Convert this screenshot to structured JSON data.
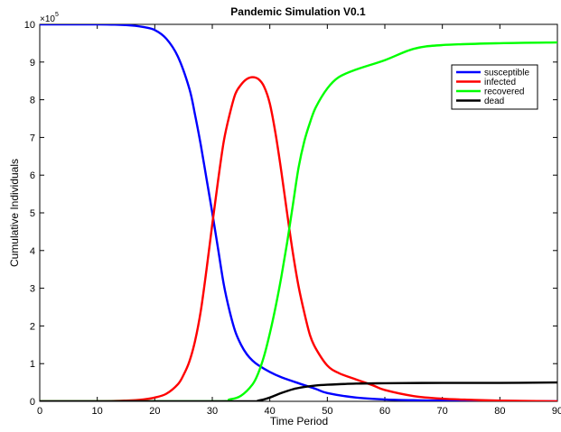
{
  "chart_data": {
    "type": "line",
    "title": "Pandemic Simulation V0.1",
    "xlabel": "Time Period",
    "ylabel": "Cumulative Individuals",
    "exponent_label": "×10",
    "exponent_power": "5",
    "xlim": [
      0,
      90
    ],
    "ylim": [
      0,
      10
    ],
    "xticks": [
      0,
      10,
      20,
      30,
      40,
      50,
      60,
      70,
      80,
      90
    ],
    "xtick_labels": [
      "0",
      "10",
      "20",
      "30",
      "40",
      "50",
      "60",
      "70",
      "80",
      "90"
    ],
    "yticks": [
      0,
      1,
      2,
      3,
      4,
      5,
      6,
      7,
      8,
      9,
      10
    ],
    "ytick_labels": [
      "0",
      "1",
      "2",
      "3",
      "4",
      "5",
      "6",
      "7",
      "8",
      "9",
      "10"
    ],
    "grid": false,
    "legend_position": "top-right",
    "series": [
      {
        "name": "susceptible",
        "color": "#0000ff",
        "x": [
          0,
          10,
          15,
          18,
          20,
          22,
          24,
          26,
          27,
          28,
          29,
          30,
          31,
          32,
          33,
          34,
          35,
          36,
          37,
          38,
          40,
          42,
          45,
          48,
          50,
          55,
          60,
          65,
          70,
          80,
          90
        ],
        "y": [
          10.0,
          10.0,
          9.98,
          9.93,
          9.85,
          9.62,
          9.15,
          8.3,
          7.6,
          6.8,
          5.9,
          5.0,
          4.05,
          3.1,
          2.4,
          1.85,
          1.5,
          1.25,
          1.08,
          0.96,
          0.78,
          0.64,
          0.48,
          0.33,
          0.22,
          0.1,
          0.05,
          0.03,
          0.02,
          0.01,
          0.0
        ]
      },
      {
        "name": "infected",
        "color": "#ff0000",
        "x": [
          0,
          10,
          15,
          18,
          20,
          22,
          24,
          25,
          26,
          27,
          28,
          29,
          30,
          31,
          32,
          33,
          34,
          35,
          36,
          37,
          38,
          39,
          40,
          41,
          42,
          43,
          44,
          45,
          46,
          47,
          48,
          50,
          52,
          55,
          58,
          60,
          65,
          70,
          75,
          80,
          90
        ],
        "y": [
          0.0,
          0.0,
          0.02,
          0.05,
          0.1,
          0.2,
          0.45,
          0.7,
          1.05,
          1.6,
          2.4,
          3.5,
          4.7,
          5.85,
          6.9,
          7.6,
          8.15,
          8.4,
          8.55,
          8.6,
          8.55,
          8.35,
          7.9,
          7.1,
          6.1,
          5.0,
          3.95,
          3.05,
          2.35,
          1.75,
          1.4,
          0.95,
          0.75,
          0.58,
          0.42,
          0.3,
          0.14,
          0.07,
          0.04,
          0.02,
          0.0
        ]
      },
      {
        "name": "recovered",
        "color": "#00ff00",
        "x": [
          0,
          30,
          33,
          35,
          37,
          38,
          39,
          40,
          41,
          42,
          43,
          44,
          45,
          46,
          47,
          48,
          50,
          52,
          55,
          60,
          65,
          70,
          80,
          90
        ],
        "y": [
          0.0,
          0.0,
          0.05,
          0.15,
          0.45,
          0.75,
          1.2,
          1.8,
          2.5,
          3.3,
          4.2,
          5.2,
          6.2,
          6.9,
          7.4,
          7.8,
          8.3,
          8.6,
          8.8,
          9.05,
          9.35,
          9.45,
          9.5,
          9.52
        ]
      },
      {
        "name": "dead",
        "color": "#000000",
        "x": [
          0,
          35,
          38,
          40,
          42,
          44,
          46,
          48,
          50,
          55,
          60,
          70,
          80,
          90
        ],
        "y": [
          0.0,
          0.0,
          0.02,
          0.1,
          0.22,
          0.32,
          0.38,
          0.42,
          0.44,
          0.47,
          0.48,
          0.49,
          0.49,
          0.5
        ]
      }
    ]
  }
}
